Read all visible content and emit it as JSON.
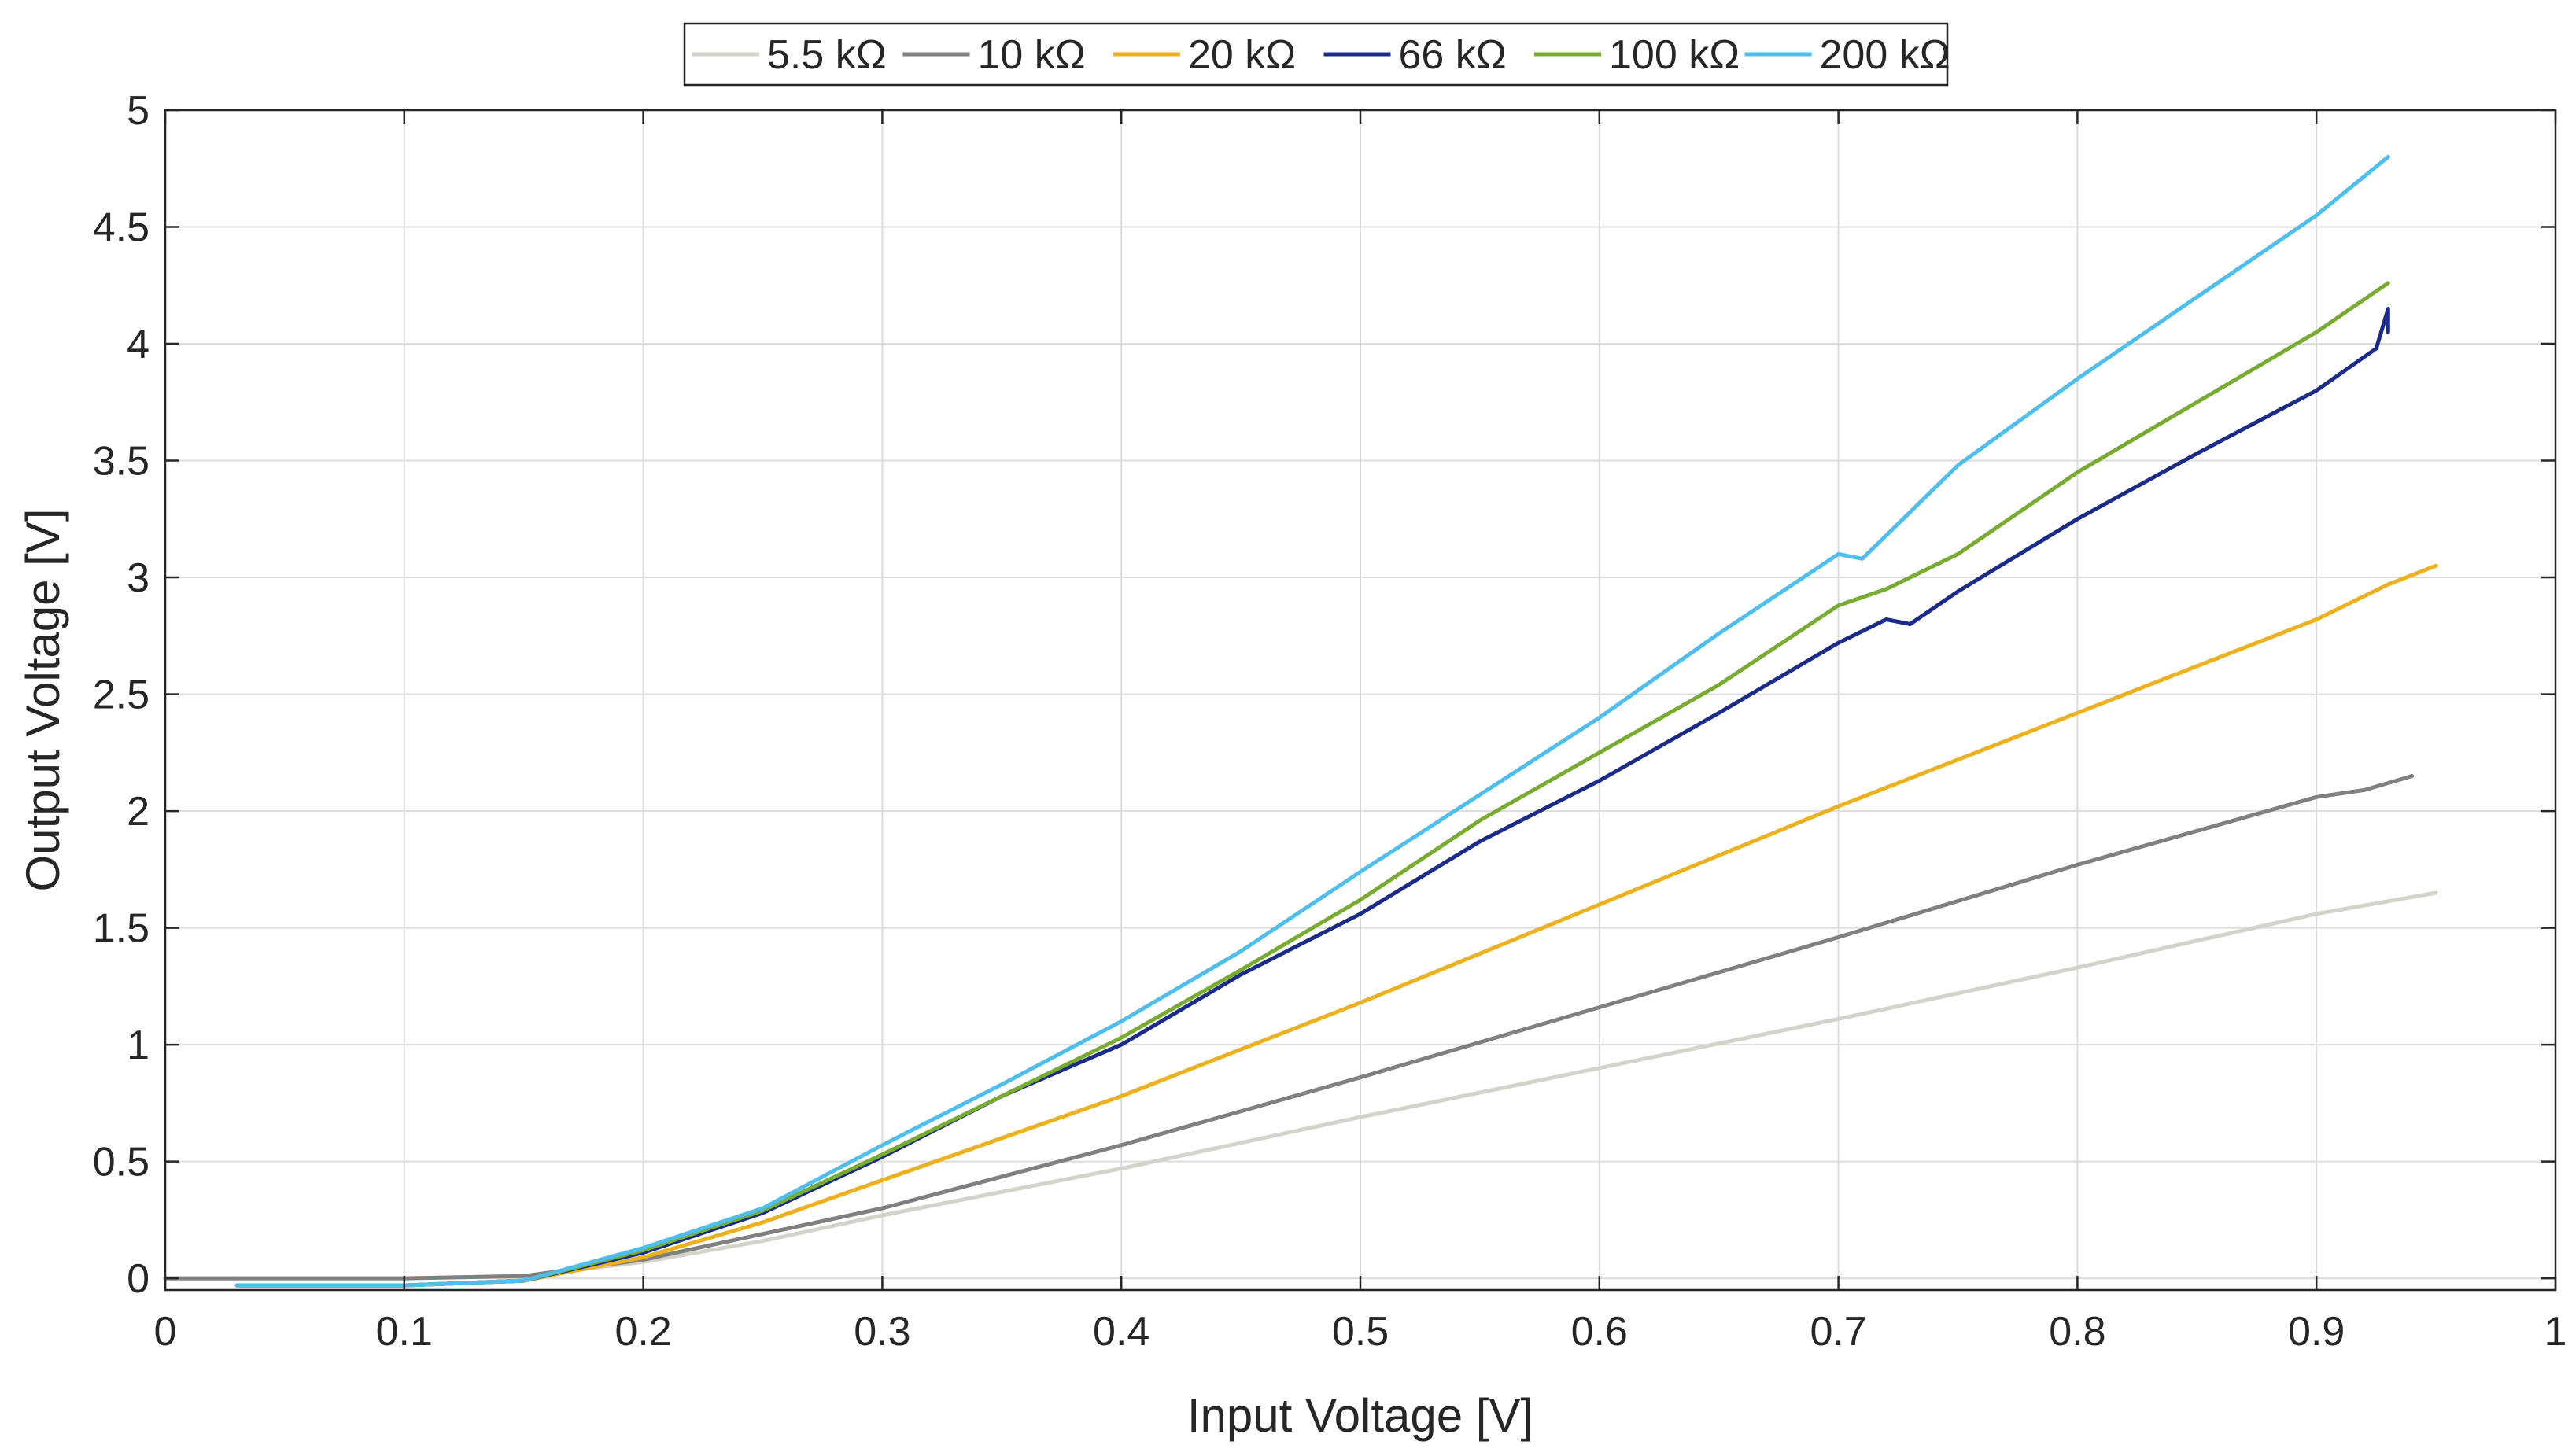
{
  "chart_data": {
    "type": "line",
    "title": "",
    "xlabel": "Input Voltage [V]",
    "ylabel": "Output Voltage [V]",
    "xlim": [
      0,
      1
    ],
    "ylim": [
      -0.05,
      5
    ],
    "xticks": [
      0,
      0.1,
      0.2,
      0.3,
      0.4,
      0.5,
      0.6,
      0.7,
      0.8,
      0.9,
      1
    ],
    "xtick_labels": [
      "0",
      "0.1",
      "0.2",
      "0.3",
      "0.4",
      "0.5",
      "0.6",
      "0.7",
      "0.8",
      "0.9",
      "1"
    ],
    "yticks": [
      0,
      0.5,
      1,
      1.5,
      2,
      2.5,
      3,
      3.5,
      4,
      4.5,
      5
    ],
    "ytick_labels": [
      "0",
      "0.5",
      "1",
      "1.5",
      "2",
      "2.5",
      "3",
      "3.5",
      "4",
      "4.5",
      "5"
    ],
    "grid": true,
    "legend_position": "top-center",
    "series": [
      {
        "name": "5.5 kΩ",
        "color": "#d3d3cc",
        "x": [
          0.0,
          0.1,
          0.15,
          0.2,
          0.25,
          0.3,
          0.4,
          0.5,
          0.6,
          0.7,
          0.8,
          0.9,
          0.95
        ],
        "y": [
          0.0,
          0.0,
          0.01,
          0.07,
          0.16,
          0.27,
          0.47,
          0.69,
          0.9,
          1.11,
          1.33,
          1.56,
          1.65
        ]
      },
      {
        "name": "10 kΩ",
        "color": "#808080",
        "x": [
          0.0,
          0.1,
          0.15,
          0.2,
          0.25,
          0.3,
          0.4,
          0.5,
          0.6,
          0.7,
          0.8,
          0.9,
          0.92,
          0.94
        ],
        "y": [
          0.0,
          0.0,
          0.01,
          0.08,
          0.19,
          0.3,
          0.57,
          0.86,
          1.16,
          1.46,
          1.77,
          2.06,
          2.09,
          2.15
        ]
      },
      {
        "name": "20 kΩ",
        "color": "#edb120",
        "x": [
          0.03,
          0.1,
          0.15,
          0.2,
          0.25,
          0.3,
          0.35,
          0.4,
          0.5,
          0.6,
          0.7,
          0.8,
          0.9,
          0.93,
          0.95
        ],
        "y": [
          -0.03,
          -0.03,
          -0.01,
          0.09,
          0.24,
          0.42,
          0.6,
          0.78,
          1.18,
          1.6,
          2.02,
          2.42,
          2.82,
          2.97,
          3.05
        ]
      },
      {
        "name": "66 kΩ",
        "color": "#1a2b8c",
        "x": [
          0.03,
          0.1,
          0.15,
          0.2,
          0.25,
          0.3,
          0.35,
          0.4,
          0.45,
          0.5,
          0.55,
          0.6,
          0.65,
          0.7,
          0.72,
          0.73,
          0.75,
          0.8,
          0.85,
          0.9,
          0.925,
          0.93,
          0.93
        ],
        "y": [
          -0.03,
          -0.03,
          -0.01,
          0.11,
          0.28,
          0.52,
          0.78,
          1.0,
          1.3,
          1.56,
          1.87,
          2.13,
          2.42,
          2.72,
          2.82,
          2.8,
          2.94,
          3.25,
          3.53,
          3.8,
          3.98,
          4.15,
          4.05
        ]
      },
      {
        "name": "100 kΩ",
        "color": "#77ac30",
        "x": [
          0.03,
          0.1,
          0.15,
          0.2,
          0.25,
          0.3,
          0.35,
          0.4,
          0.45,
          0.5,
          0.55,
          0.6,
          0.65,
          0.7,
          0.72,
          0.75,
          0.8,
          0.85,
          0.9,
          0.93
        ],
        "y": [
          -0.03,
          -0.03,
          -0.01,
          0.12,
          0.29,
          0.53,
          0.78,
          1.03,
          1.32,
          1.62,
          1.96,
          2.25,
          2.54,
          2.88,
          2.95,
          3.1,
          3.45,
          3.75,
          4.05,
          4.26
        ]
      },
      {
        "name": "200 kΩ",
        "color": "#4dbeee",
        "x": [
          0.03,
          0.1,
          0.15,
          0.2,
          0.25,
          0.3,
          0.35,
          0.4,
          0.45,
          0.5,
          0.55,
          0.6,
          0.65,
          0.7,
          0.71,
          0.75,
          0.8,
          0.85,
          0.9,
          0.93
        ],
        "y": [
          -0.03,
          -0.03,
          -0.01,
          0.13,
          0.3,
          0.57,
          0.83,
          1.1,
          1.4,
          1.74,
          2.07,
          2.4,
          2.76,
          3.1,
          3.08,
          3.48,
          3.85,
          4.2,
          4.55,
          4.8
        ]
      }
    ]
  }
}
